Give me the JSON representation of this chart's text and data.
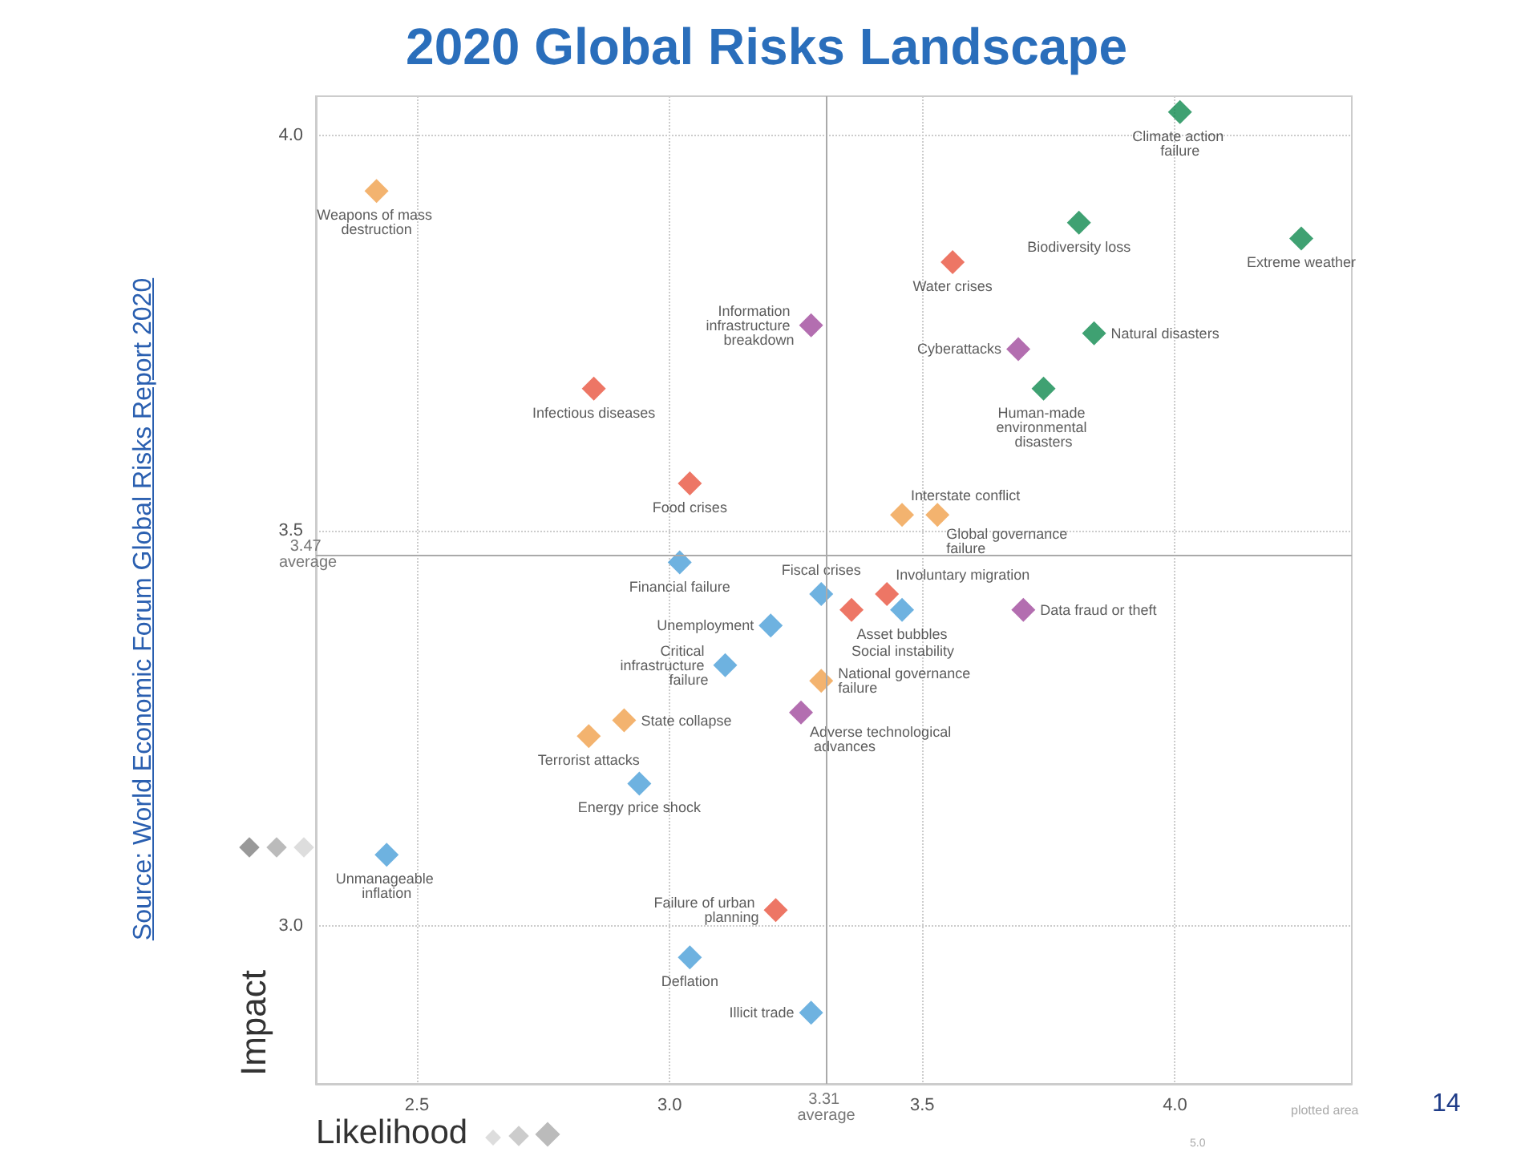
{
  "chart_data": {
    "type": "scatter",
    "title": "2020 Global Risks Landscape",
    "xlabel": "Likelihood",
    "ylabel": "Impact",
    "annotations": [
      "Source: World Economic Forum Global Risks Report 2020",
      "14",
      "plotted area",
      "5.0"
    ],
    "xlim": [
      2.3,
      4.35
    ],
    "ylim": [
      2.8,
      4.05
    ],
    "xticks": [
      {
        "value": 2.5,
        "label": "2.5"
      },
      {
        "value": 3,
        "label": "3.0"
      },
      {
        "value": 3.5,
        "label": "3.5"
      },
      {
        "value": 4,
        "label": "4.0"
      }
    ],
    "yticks": [
      {
        "value": 3,
        "label": "3.0"
      },
      {
        "value": 3.5,
        "label": "3.5"
      },
      {
        "value": 4,
        "label": "4.0"
      }
    ],
    "grid": true,
    "marker": "diamond",
    "ref_lines": [
      {
        "axis": "x",
        "value": 3.31,
        "label": "3.31 average",
        "color": "#aaaaaa"
      },
      {
        "axis": "y",
        "value": 3.47,
        "label": "3.47 average",
        "color": "#aaaaaa"
      }
    ],
    "series": [
      {
        "color": "#4a9fd8",
        "x": [
          3.02,
          3.3,
          3.46,
          3.2,
          3.11,
          2.94,
          2.44,
          3.04,
          3.28
        ],
        "values": [
          3.46,
          3.42,
          3.4,
          3.38,
          3.33,
          3.18,
          3.09,
          2.96,
          2.89
        ],
        "value_labels": [
          "Financial failure",
          "Fiscal crises",
          "Asset bubbles",
          "Unemployment",
          "Critical infrastructure failure",
          "Energy price shock",
          "Unmanageable inflation",
          "Deflation",
          "Illicit trade"
        ]
      },
      {
        "color": "#0f8a4f",
        "x": [
          4.01,
          3.81,
          4.25,
          3.84,
          3.74
        ],
        "values": [
          4.03,
          3.89,
          3.87,
          3.75,
          3.68
        ],
        "value_labels": [
          "Climate action failure",
          "Biodiversity loss",
          "Extreme weather",
          "Natural disasters",
          "Human-made environmental disasters"
        ]
      },
      {
        "color": "#f0a04b",
        "x": [
          2.42,
          3.46,
          3.53,
          3.3,
          2.91,
          2.84
        ],
        "values": [
          3.93,
          3.52,
          3.52,
          3.31,
          3.26,
          3.24
        ],
        "value_labels": [
          "Weapons of mass destruction",
          "Interstate conflict",
          "Global governance failure",
          "National governance failure",
          "State collapse",
          "Terrorist attacks"
        ]
      },
      {
        "color": "#e8543f",
        "x": [
          3.56,
          2.85,
          3.04,
          3.43,
          3.36,
          3.21
        ],
        "values": [
          3.84,
          3.68,
          3.56,
          3.42,
          3.4,
          3.02
        ],
        "value_labels": [
          "Water crises",
          "Infectious diseases",
          "Food crises",
          "Involuntary migration",
          "Social instability",
          "Failure of urban planning"
        ]
      },
      {
        "color": "#a04a9c",
        "x": [
          3.28,
          3.69,
          3.7,
          3.26
        ],
        "values": [
          3.76,
          3.73,
          3.4,
          3.27
        ],
        "value_labels": [
          "Information infrastructure breakdown",
          "Cyberattacks",
          "Data fraud or theft",
          "Adverse technological advances"
        ]
      }
    ]
  }
}
